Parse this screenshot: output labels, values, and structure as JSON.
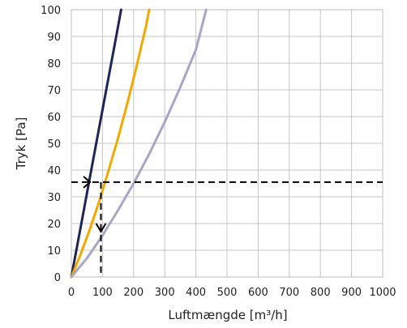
{
  "chart_data": {
    "type": "line",
    "title": "",
    "xlabel": "Luftmængde [m³/h]",
    "ylabel": "Tryk [Pa]",
    "xlim": [
      0,
      1000
    ],
    "ylim": [
      0,
      100
    ],
    "xticks": [
      0,
      100,
      200,
      300,
      400,
      500,
      600,
      700,
      800,
      900,
      1000
    ],
    "yticks": [
      0,
      10,
      20,
      30,
      40,
      50,
      60,
      70,
      80,
      90,
      100
    ],
    "grid": true,
    "series": [
      {
        "color": "#1f2557",
        "x": [
          0,
          20,
          40,
          60,
          80,
          100,
          120,
          140,
          160
        ],
        "y": [
          0,
          12.5,
          25,
          37.5,
          50,
          62.5,
          75,
          87.5,
          100
        ]
      },
      {
        "color": "#f2a900",
        "x": [
          0,
          30,
          60,
          90,
          120,
          150,
          180,
          210,
          240,
          250
        ],
        "y": [
          0,
          8.5,
          18,
          28.5,
          40,
          52,
          65,
          79,
          94,
          100
        ]
      },
      {
        "color": "#a9a7c8",
        "x": [
          0,
          50,
          100,
          150,
          200,
          250,
          300,
          350,
          400,
          433
        ],
        "y": [
          0,
          7,
          15.5,
          25,
          35,
          46,
          58,
          71,
          85,
          100
        ]
      }
    ],
    "reference": {
      "pressure": 35.5,
      "flow": 95,
      "color": "#000000"
    }
  }
}
